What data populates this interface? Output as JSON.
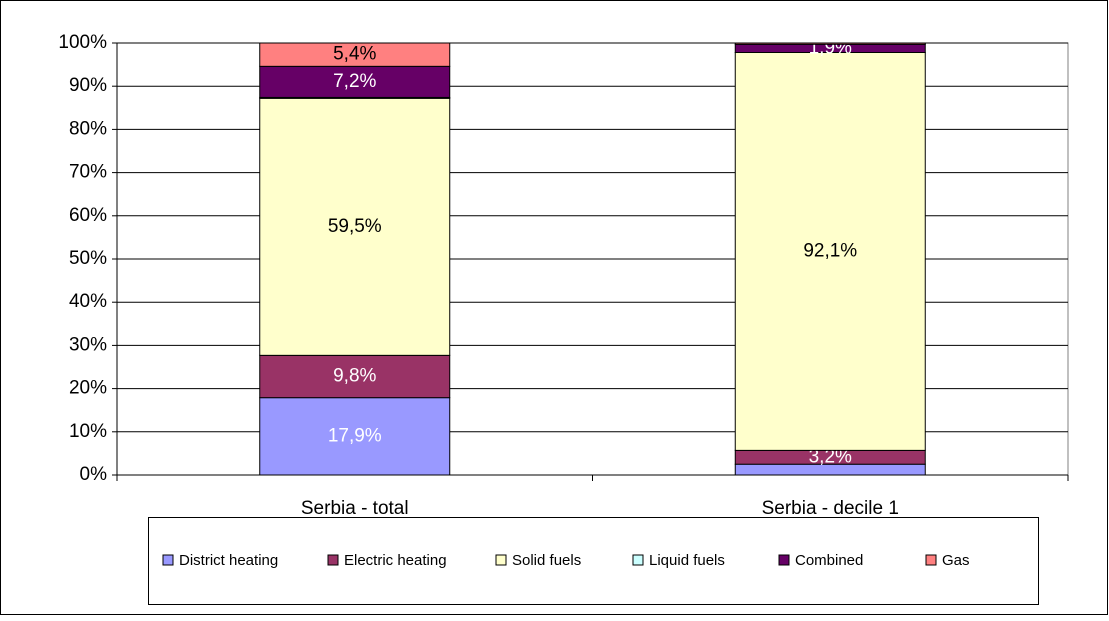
{
  "chart_data": {
    "type": "stacked_bar",
    "categories": [
      "Serbia - total",
      "Serbia - decile 1"
    ],
    "series": [
      {
        "name": "District heating",
        "color": "#9999ff",
        "values": [
          17.9,
          2.5
        ],
        "value_labels": [
          "17,9%",
          null
        ]
      },
      {
        "name": "Electric heating",
        "color": "#993366",
        "values": [
          9.8,
          3.2
        ],
        "value_labels": [
          "9,8%",
          "3,2%"
        ]
      },
      {
        "name": "Solid fuels",
        "color": "#ffffcc",
        "values": [
          59.5,
          92.1
        ],
        "value_labels": [
          "59,5%",
          "92,1%"
        ]
      },
      {
        "name": "Liquid fuels",
        "color": "#ccffff",
        "values": [
          0.2,
          0
        ],
        "value_labels": [
          null,
          null
        ]
      },
      {
        "name": "Combined",
        "color": "#660066",
        "values": [
          7.2,
          1.9
        ],
        "value_labels": [
          "7,2%",
          "1,9%"
        ]
      },
      {
        "name": "Gas",
        "color": "#ff8080",
        "values": [
          5.4,
          0.3
        ],
        "value_labels": [
          "5,4%",
          null
        ]
      }
    ],
    "ylim": [
      0,
      100
    ],
    "yticks": [
      {
        "value": 0,
        "label": "0%"
      },
      {
        "value": 10,
        "label": "10%"
      },
      {
        "value": 20,
        "label": "20%"
      },
      {
        "value": 30,
        "label": "30%"
      },
      {
        "value": 40,
        "label": "40%"
      },
      {
        "value": 50,
        "label": "50%"
      },
      {
        "value": 60,
        "label": "60%"
      },
      {
        "value": 70,
        "label": "70%"
      },
      {
        "value": 80,
        "label": "80%"
      },
      {
        "value": 90,
        "label": "90%"
      },
      {
        "value": 100,
        "label": "100%"
      }
    ],
    "grid": true,
    "legend": "bottom"
  }
}
